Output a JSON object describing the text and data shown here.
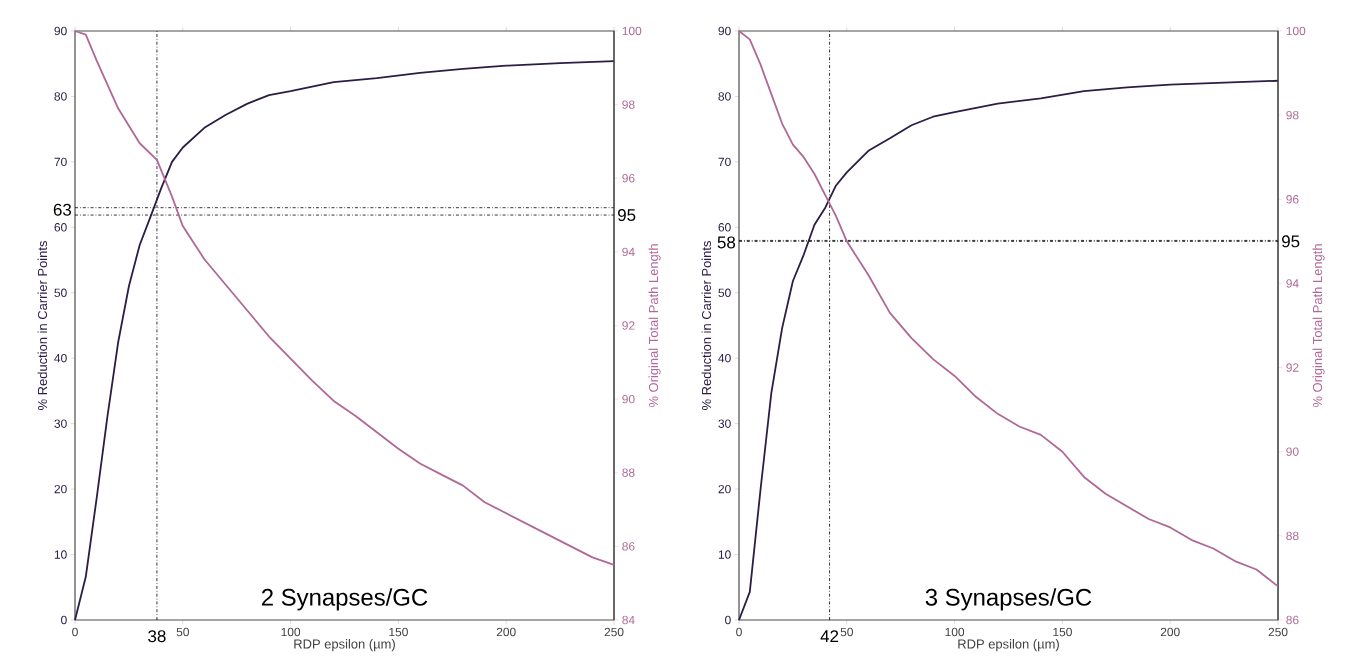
{
  "chart_data": [
    {
      "type": "line",
      "title": "2 Synapses/GC",
      "xlabel": "RDP epsilon (µm)",
      "ylabel": "% Reduction in Carrier Points",
      "y2label": "% Original Total Path Length",
      "xlim": [
        0,
        250
      ],
      "xticks": [
        0,
        50,
        100,
        150,
        200,
        250
      ],
      "ylim": [
        0,
        90
      ],
      "yticks": [
        0,
        10,
        20,
        30,
        40,
        50,
        60,
        70,
        80,
        90
      ],
      "y2lim": [
        84,
        100
      ],
      "y2ticks": [
        84,
        86,
        88,
        90,
        92,
        94,
        96,
        98,
        100
      ],
      "series": [
        {
          "color": "#2b1d45",
          "x": [
            0,
            5,
            10,
            15,
            20,
            25,
            30,
            35,
            40,
            45,
            50,
            60,
            70,
            80,
            90,
            100,
            120,
            140,
            160,
            180,
            200,
            225,
            250
          ],
          "values": [
            0,
            6.6,
            18.5,
            31,
            42.4,
            51,
            57.3,
            61.6,
            66,
            70,
            72.2,
            75.2,
            77.2,
            78.9,
            80.2,
            80.8,
            82.2,
            82.8,
            83.6,
            84.2,
            84.7,
            85.1,
            85.4
          ]
        },
        {
          "color": "#b06896",
          "axis": "y2",
          "x": [
            0,
            5,
            10,
            20,
            30,
            38,
            45,
            50,
            60,
            70,
            80,
            90,
            100,
            110,
            120,
            130,
            140,
            150,
            160,
            170,
            180,
            190,
            200,
            210,
            220,
            230,
            240,
            250
          ],
          "values": [
            100,
            99.9,
            99.2,
            97.9,
            96.95,
            96.5,
            95.5,
            94.7,
            93.8,
            93.1,
            92.4,
            91.7,
            91.1,
            90.5,
            89.95,
            89.55,
            89.1,
            88.65,
            88.25,
            87.95,
            87.65,
            87.2,
            86.9,
            86.6,
            86.3,
            86.0,
            85.7,
            85.5
          ]
        }
      ],
      "ref_lines": [
        {
          "axis": "x",
          "value": 38,
          "label": "38",
          "color": "#000000",
          "line_style": "dashdot"
        },
        {
          "axis": "y",
          "value": 63,
          "label": "63",
          "color": "#000000",
          "line_style": "dashdot"
        },
        {
          "axis": "y2",
          "value": 95,
          "label": "95",
          "color": "#000000",
          "line_style": "dashdot"
        }
      ]
    },
    {
      "type": "line",
      "title": "3 Synapses/GC",
      "xlabel": "RDP epsilon (µm)",
      "ylabel": "% Reduction in Carrier Points",
      "y2label": "% Original Total Path Length",
      "xlim": [
        0,
        250
      ],
      "xticks": [
        0,
        50,
        100,
        150,
        200,
        250
      ],
      "ylim": [
        0,
        90
      ],
      "yticks": [
        0,
        10,
        20,
        30,
        40,
        50,
        60,
        70,
        80,
        90
      ],
      "y2lim": [
        86,
        100
      ],
      "y2ticks": [
        86,
        88,
        90,
        92,
        94,
        96,
        98,
        100
      ],
      "series": [
        {
          "color": "#2b1d45",
          "x": [
            0,
            5,
            10,
            15,
            20,
            25,
            30,
            35,
            40,
            45,
            50,
            60,
            70,
            80,
            90,
            100,
            120,
            140,
            160,
            180,
            200,
            225,
            250
          ],
          "values": [
            0,
            4.3,
            20,
            34.7,
            44.6,
            51.8,
            55.8,
            60.4,
            63,
            66.4,
            68.4,
            71.7,
            73.6,
            75.6,
            76.9,
            77.6,
            78.9,
            79.7,
            80.8,
            81.4,
            81.8,
            82.1,
            82.4
          ]
        },
        {
          "color": "#b06896",
          "axis": "y2",
          "x": [
            0,
            5,
            10,
            15,
            20,
            25,
            30,
            35,
            40,
            45,
            50,
            60,
            70,
            80,
            90,
            100,
            110,
            120,
            130,
            140,
            150,
            160,
            170,
            180,
            190,
            200,
            210,
            220,
            230,
            240,
            250
          ],
          "values": [
            100,
            99.8,
            99.2,
            98.5,
            97.8,
            97.3,
            97.0,
            96.6,
            96.1,
            95.6,
            95.0,
            94.2,
            93.3,
            92.7,
            92.2,
            91.8,
            91.3,
            90.9,
            90.6,
            90.4,
            90.0,
            89.4,
            89.0,
            88.7,
            88.4,
            88.2,
            87.9,
            87.7,
            87.4,
            87.2,
            86.8
          ]
        }
      ],
      "ref_lines": [
        {
          "axis": "x",
          "value": 42,
          "label": "42",
          "color": "#000000",
          "line_style": "dashdot"
        },
        {
          "axis": "y",
          "value": 58,
          "label": "58",
          "color": "#000000",
          "line_style": "dashdot"
        },
        {
          "axis": "y2",
          "value": 95,
          "label": "95",
          "color": "#000000",
          "line_style": "dashdot"
        }
      ]
    }
  ]
}
